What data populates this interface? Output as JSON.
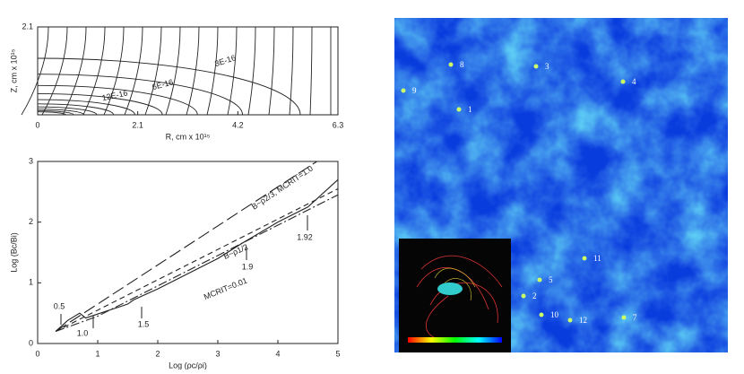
{
  "chart_data": [
    {
      "type": "contour",
      "xlabel": "R, cm x 10¹⁵",
      "ylabel": "Z, cm x 10¹⁵",
      "xlim": [
        0,
        6.3
      ],
      "ylim": [
        0,
        2.1
      ],
      "xticks": [
        0,
        2.1,
        4.2,
        6.3
      ],
      "yticks": [
        2.1
      ],
      "annotations": [
        "3E-16",
        "6E-16",
        "12E-16"
      ]
    },
    {
      "type": "line",
      "xlabel": "Log (ρc/ρi)",
      "ylabel": "Log (Bc/Bi)",
      "xlim": [
        0,
        5
      ],
      "ylim": [
        0,
        3
      ],
      "xticks": [
        0,
        1,
        2,
        3,
        4,
        5
      ],
      "yticks": [
        0,
        1,
        2,
        3
      ],
      "series": [
        {
          "color": "#222",
          "x": [
            0.3,
            4.65
          ],
          "values": [
            0.2,
            3.0
          ]
        },
        {
          "color": "#222",
          "x": [
            0.3,
            0.5,
            0.7,
            0.8,
            1.5,
            1.6,
            2,
            3,
            3.4,
            4,
            4.5,
            5
          ],
          "values": [
            0.2,
            0.38,
            0.5,
            0.42,
            0.65,
            0.72,
            0.9,
            1.4,
            1.65,
            2.0,
            2.25,
            2.7
          ]
        },
        {
          "color": "#222",
          "x": [
            0.3,
            5
          ],
          "values": [
            0.2,
            2.55
          ]
        },
        {
          "color": "#222",
          "x": [
            0.3,
            1,
            2,
            3,
            4,
            5
          ],
          "values": [
            0.2,
            0.45,
            0.95,
            1.45,
            1.95,
            2.45
          ]
        }
      ],
      "annotations": [
        "B~ρ2/3, MCRIT=1.0",
        "B~ρ1/2",
        "MCRIT=0.01",
        "0.5",
        "1.0",
        "1.5",
        "1.9",
        "1.92"
      ]
    }
  ],
  "image": {
    "labels": [
      "8",
      "3",
      "4",
      "9",
      "1",
      "11",
      "5",
      "2",
      "10",
      "12",
      "7"
    ]
  }
}
